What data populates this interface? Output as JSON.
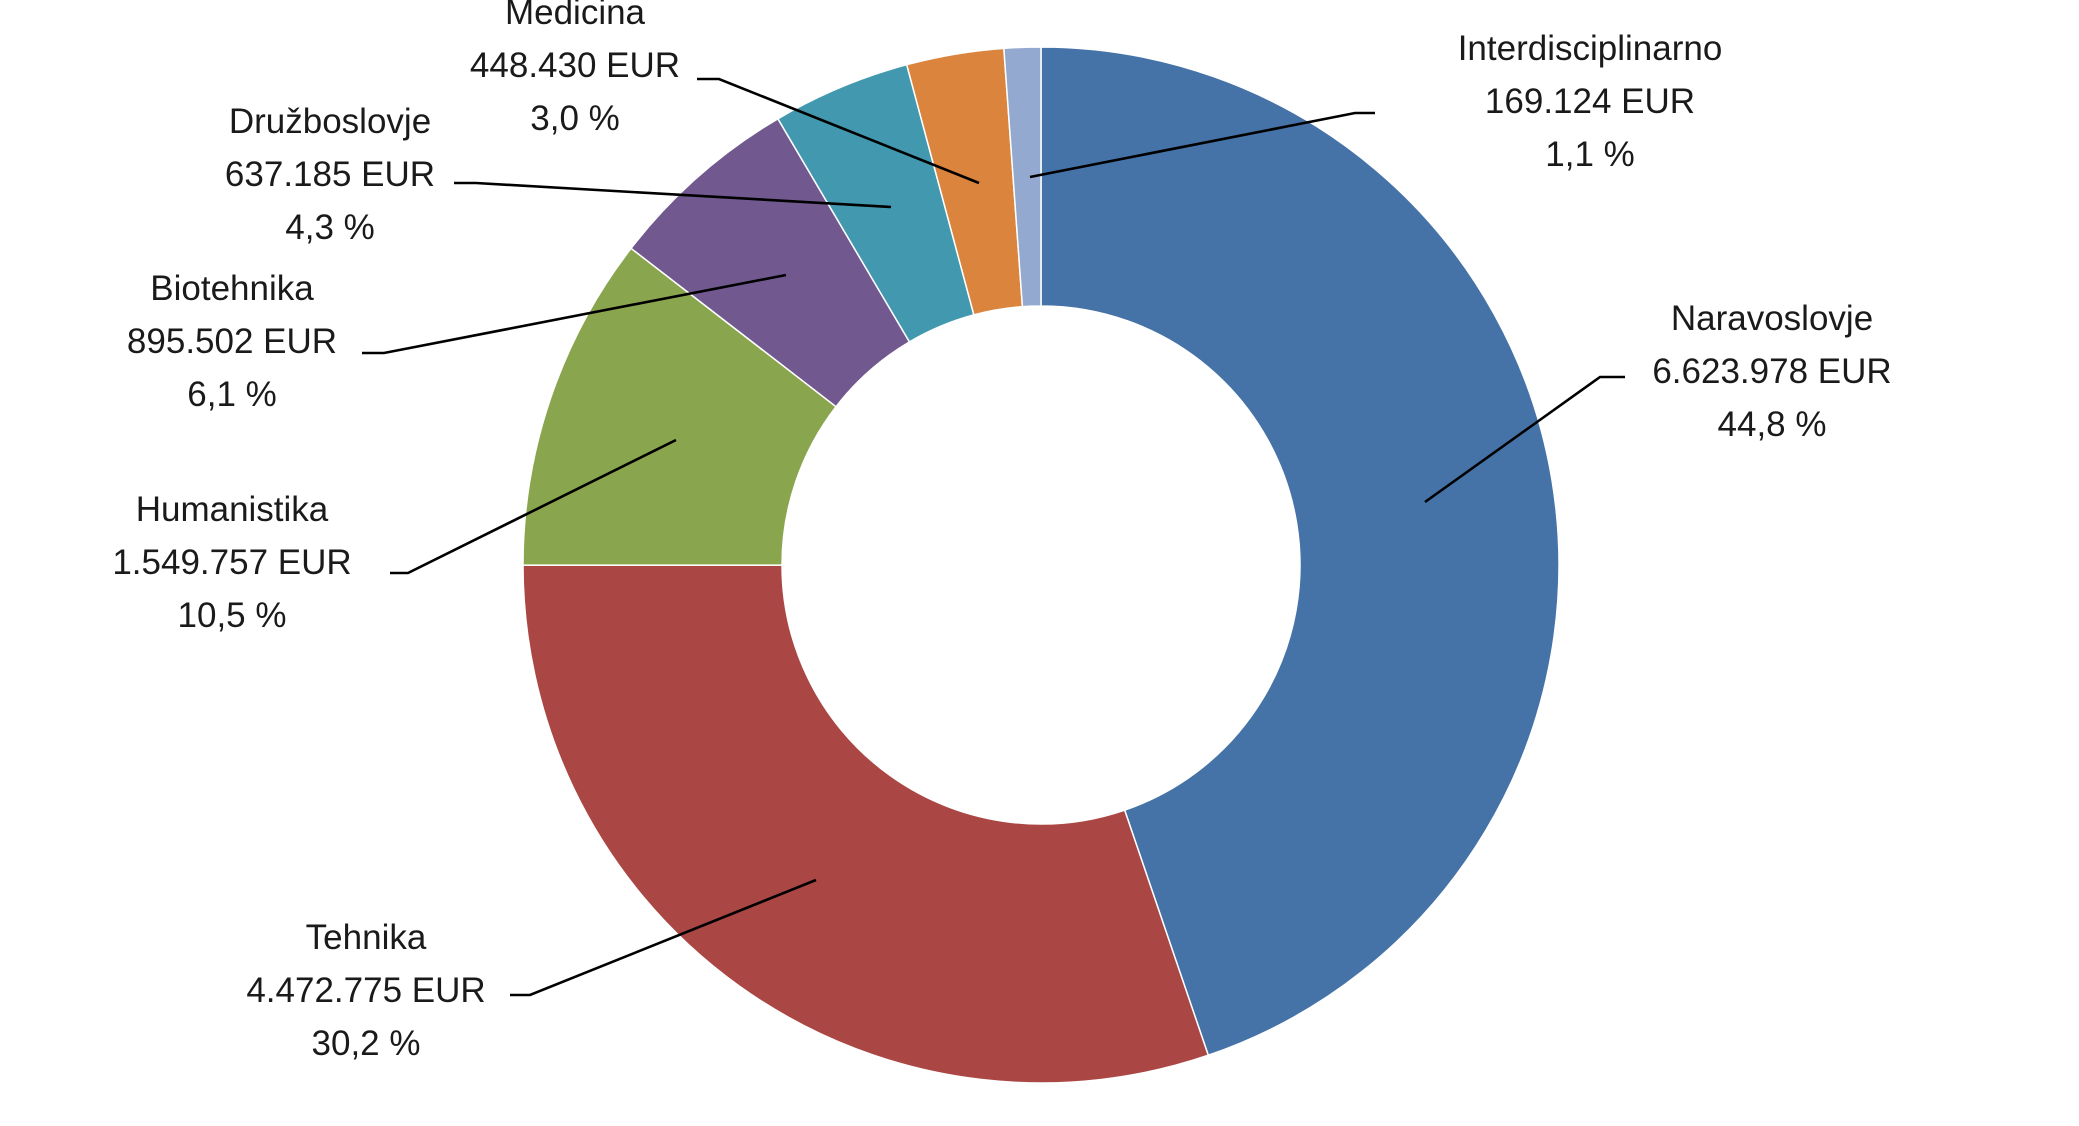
{
  "chart_data": {
    "type": "pie",
    "variant": "donut",
    "title": "",
    "unit": "EUR",
    "slices": [
      {
        "name": "Naravoslovje",
        "value": 6623978,
        "value_label": "6.623.978 EUR",
        "percent": 44.8,
        "percent_label": "44,8 %",
        "color": "#4572A7"
      },
      {
        "name": "Tehnika",
        "value": 4472775,
        "value_label": "4.472.775 EUR",
        "percent": 30.2,
        "percent_label": "30,2 %",
        "color": "#AA4643"
      },
      {
        "name": "Humanistika",
        "value": 1549757,
        "value_label": "1.549.757 EUR",
        "percent": 10.5,
        "percent_label": "10,5 %",
        "color": "#89A54E"
      },
      {
        "name": "Biotehnika",
        "value": 895502,
        "value_label": "895.502 EUR",
        "percent": 6.1,
        "percent_label": "6,1 %",
        "color": "#71588F"
      },
      {
        "name": "Družboslovje",
        "value": 637185,
        "value_label": "637.185 EUR",
        "percent": 4.3,
        "percent_label": "4,3 %",
        "color": "#4198AF"
      },
      {
        "name": "Medicina",
        "value": 448430,
        "value_label": "448.430 EUR",
        "percent": 3.0,
        "percent_label": "3,0 %",
        "color": "#DB843D"
      },
      {
        "name": "Interdisciplinarno",
        "value": 169124,
        "value_label": "169.124 EUR",
        "percent": 1.1,
        "percent_label": "1,1 %",
        "color": "#93A9CF"
      }
    ],
    "start_angle": "12 o'clock",
    "direction": "clockwise",
    "legend": "none",
    "data_labels": "outside with leader lines"
  }
}
